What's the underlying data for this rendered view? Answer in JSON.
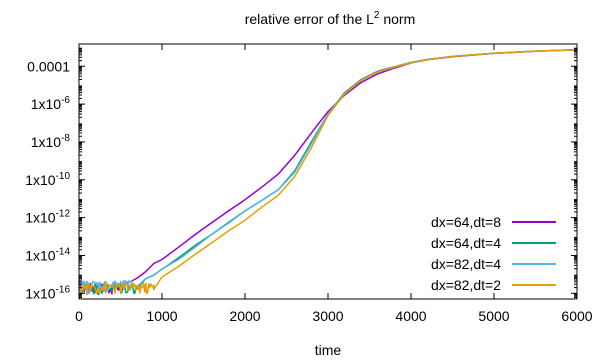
{
  "chart_data": {
    "type": "line",
    "title": "relative error of the L",
    "title_superscript": "2",
    "title_suffix": " norm",
    "xlabel": "time",
    "ylabel": "",
    "xlim": [
      0,
      6000
    ],
    "ylim": [
      5e-17,
      0.0015
    ],
    "yscale": "log",
    "grid": false,
    "legend_position": "bottom-right",
    "x_ticks": [
      {
        "value": 0,
        "label": "0"
      },
      {
        "value": 1000,
        "label": "1000"
      },
      {
        "value": 2000,
        "label": "2000"
      },
      {
        "value": 3000,
        "label": "3000"
      },
      {
        "value": 4000,
        "label": "4000"
      },
      {
        "value": 5000,
        "label": "5000"
      },
      {
        "value": 6000,
        "label": "6000"
      }
    ],
    "y_ticks": [
      {
        "value": 1e-16,
        "base": "1x10",
        "exp": "-16"
      },
      {
        "value": 1e-14,
        "base": "1x10",
        "exp": "-14"
      },
      {
        "value": 1e-12,
        "base": "1x10",
        "exp": "-12"
      },
      {
        "value": 1e-10,
        "base": "1x10",
        "exp": "-10"
      },
      {
        "value": 1e-08,
        "base": "1x10",
        "exp": "-8"
      },
      {
        "value": 1e-06,
        "base": "1x10",
        "exp": "-6"
      },
      {
        "value": 0.0001,
        "base": "0.0001",
        "exp": ""
      }
    ],
    "series": [
      {
        "name": "dx=64,dt=8",
        "color": "#9400D3",
        "noise_until": 480,
        "x": [
          0,
          480,
          500,
          550,
          600,
          650,
          700,
          800,
          900,
          1000,
          1200,
          1400,
          1600,
          1800,
          2000,
          2200,
          2400,
          2600,
          2800,
          3000,
          3200,
          3400,
          3600,
          3800,
          4000,
          4200,
          4500,
          5000,
          5500,
          6000
        ],
        "y": [
          1.5e-16,
          1.5e-16,
          3e-16,
          3e-16,
          4e-16,
          5e-16,
          7e-16,
          1.5e-15,
          3.5e-15,
          7e-15,
          3e-14,
          1.2e-13,
          5e-13,
          2e-12,
          8e-12,
          4e-11,
          2e-10,
          2e-09,
          3e-08,
          4e-07,
          3e-06,
          1.4e-05,
          4e-05,
          8e-05,
          0.00015,
          0.00022,
          0.00032,
          0.00048,
          0.00062,
          0.00073
        ]
      },
      {
        "name": "dx=64,dt=4",
        "color": "#009E73",
        "noise_until": 700,
        "x": [
          0,
          700,
          800,
          900,
          1000,
          1200,
          1400,
          1600,
          1800,
          2000,
          2200,
          2400,
          2600,
          2800,
          3000,
          3200,
          3400,
          3600,
          3800,
          4000,
          4200,
          4500,
          5000,
          5500,
          6000
        ],
        "y": [
          1.5e-16,
          1.5e-16,
          6e-16,
          1e-15,
          2e-15,
          7e-15,
          3e-14,
          1.2e-13,
          5e-13,
          2e-12,
          8e-12,
          3e-11,
          3e-10,
          1e-08,
          3e-07,
          4e-06,
          2e-05,
          5.5e-05,
          9.5e-05,
          0.00016,
          0.00023,
          0.00033,
          0.00049,
          0.00063,
          0.00074
        ]
      },
      {
        "name": "dx=82,dt=4",
        "color": "#56B4E9",
        "noise_until": 700,
        "x": [
          0,
          700,
          800,
          900,
          1000,
          1200,
          1400,
          1600,
          1800,
          2000,
          2200,
          2400,
          2600,
          2800,
          3000,
          3200,
          3400,
          3600,
          3800,
          4000,
          4200,
          4500,
          5000,
          5500,
          6000
        ],
        "y": [
          2e-16,
          2e-16,
          6e-16,
          1e-15,
          2e-15,
          7e-15,
          3e-14,
          1.2e-13,
          5e-13,
          2e-12,
          8e-12,
          3e-11,
          2.5e-10,
          8e-09,
          3e-07,
          3.5e-06,
          1.8e-05,
          5e-05,
          9e-05,
          0.000155,
          0.000225,
          0.00033,
          0.00049,
          0.00063,
          0.00074
        ]
      },
      {
        "name": "dx=82,dt=2",
        "color": "#E69F00",
        "noise_until": 900,
        "x": [
          0,
          900,
          1000,
          1200,
          1400,
          1600,
          1800,
          2000,
          2200,
          2400,
          2600,
          2800,
          3000,
          3200,
          3400,
          3600,
          3800,
          4000,
          4200,
          4500,
          5000,
          5500,
          6000
        ],
        "y": [
          1.5e-16,
          1.5e-16,
          7e-16,
          3e-15,
          1.2e-14,
          5e-14,
          2e-13,
          8e-13,
          3.5e-12,
          1.5e-11,
          1.5e-10,
          5e-09,
          2.5e-07,
          3.5e-06,
          1.8e-05,
          5e-05,
          9e-05,
          0.000155,
          0.000225,
          0.00033,
          0.00049,
          0.00063,
          0.00074
        ]
      }
    ]
  }
}
